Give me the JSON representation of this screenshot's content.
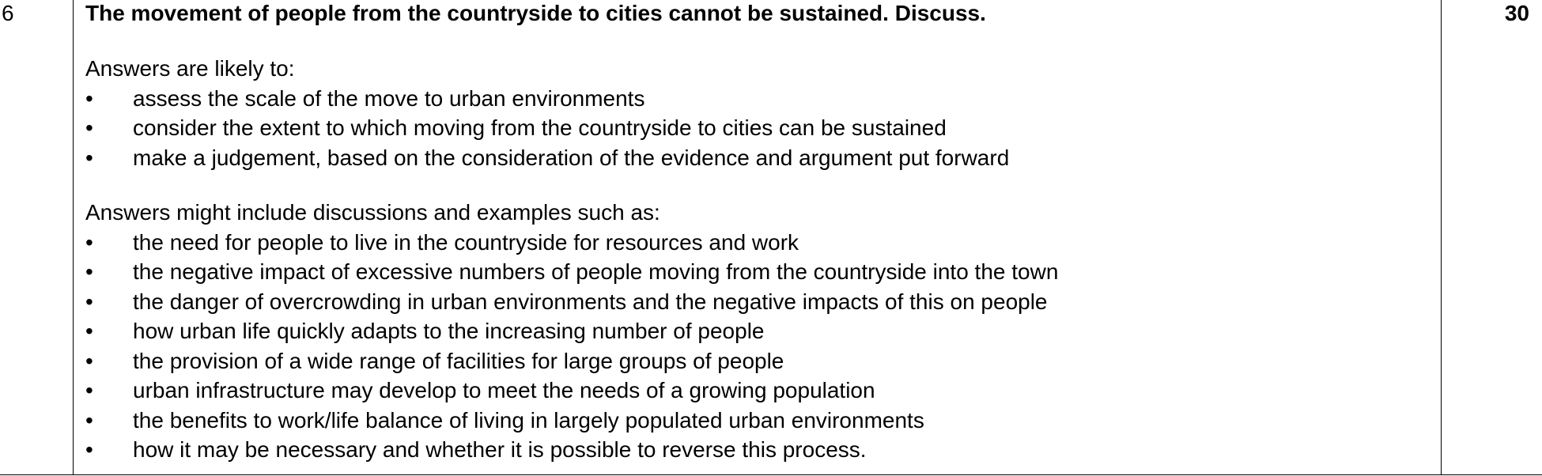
{
  "question_number": "6",
  "question_text": "The movement of people from the countryside to cities cannot be sustained. Discuss.",
  "marks": "30",
  "bullet_glyph": "•",
  "section1": {
    "intro": "Answers are likely to:",
    "items": [
      "assess the scale of the move to urban environments",
      "consider the extent to which moving from the countryside to cities can be sustained",
      "make a judgement, based on the consideration of the evidence and argument put forward"
    ]
  },
  "section2": {
    "intro": "Answers might include discussions and examples such as:",
    "items": [
      "the need for people to live in the countryside for resources and work",
      "the negative impact of excessive numbers of people moving from the countryside into the town",
      "the danger of overcrowding in urban environments and the negative impacts of this on people",
      "how urban life quickly adapts to the increasing number of people",
      "the provision of a wide range of facilities for large groups of people",
      "urban infrastructure may develop to meet the needs of a growing population",
      "the benefits to work/life balance of living in largely populated urban environments",
      "how it may be necessary and whether it is possible to reverse this process."
    ]
  }
}
